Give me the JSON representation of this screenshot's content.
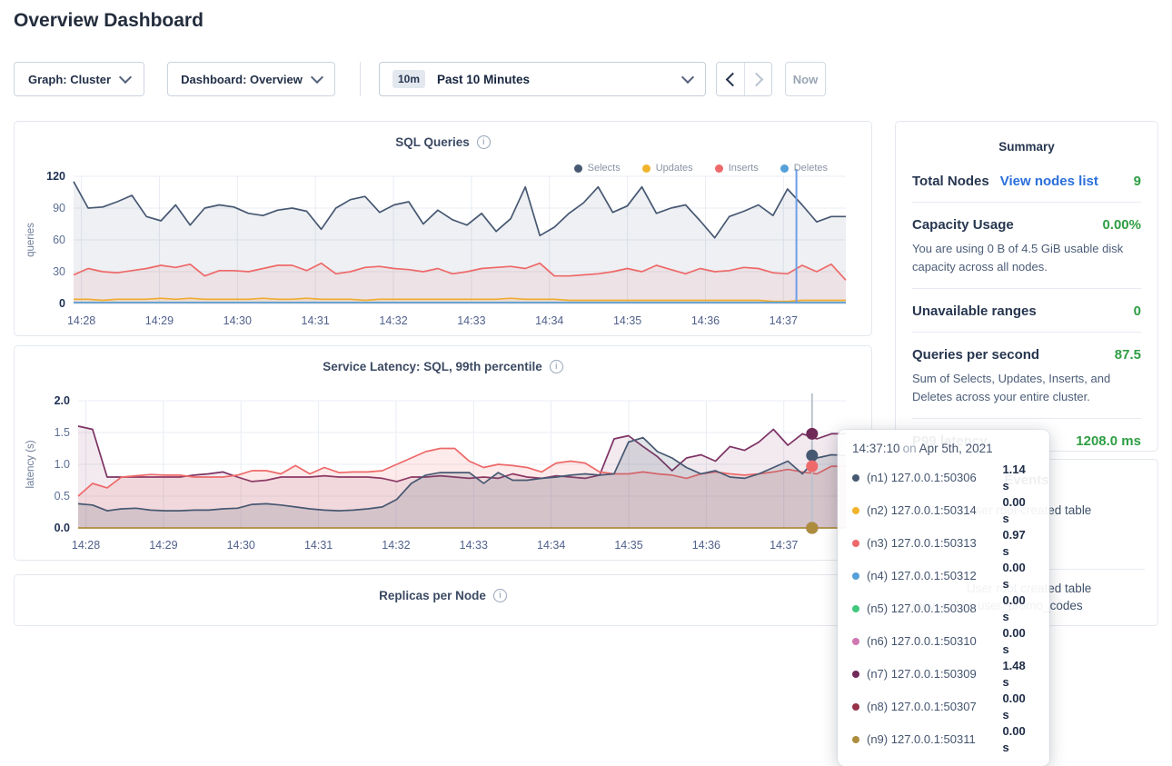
{
  "page": {
    "title": "Overview Dashboard"
  },
  "toolbar": {
    "graph_selector": "Graph: Cluster",
    "dashboard_selector": "Dashboard: Overview",
    "range_badge": "10m",
    "range_label": "Past 10 Minutes",
    "now_button": "Now"
  },
  "colors": {
    "link_blue": "#2a6fdb",
    "value_green": "#2f9e44",
    "hover_line_sql": "#6d9ee8",
    "hover_line_latency": "#bcc2cd"
  },
  "summary": {
    "title": "Summary",
    "rows": [
      {
        "label": "Total Nodes",
        "link": "View nodes list",
        "value": "9"
      },
      {
        "label": "Capacity Usage",
        "value": "0.00%",
        "subtext": "You are using 0 B of 4.5 GiB usable disk capacity across all nodes."
      },
      {
        "label": "Unavailable ranges",
        "value": "0"
      },
      {
        "label": "Queries per second",
        "value": "87.5",
        "subtext": "Sum of Selects, Updates, Inserts, and Deletes across your entire cluster."
      },
      {
        "label": "P99 latency",
        "value": "1208.0 ms"
      }
    ]
  },
  "events": {
    "title": "Events",
    "items": [
      {
        "text": "User root created table",
        "detail": ""
      },
      {
        "text": "User root created table",
        "detail": "movr.public.user_promo_codes"
      }
    ]
  },
  "tooltip": {
    "time": "14:37:10",
    "time_connector": "on",
    "date": "Apr 5th, 2021",
    "rows": [
      {
        "label": "(n1) 127.0.0.1:50306",
        "value": "1.14 s",
        "color": "#475872"
      },
      {
        "label": "(n2) 127.0.0.1:50314",
        "value": "0.00 s",
        "color": "#f0b42c"
      },
      {
        "label": "(n3) 127.0.0.1:50313",
        "value": "0.97 s",
        "color": "#ee6969"
      },
      {
        "label": "(n4) 127.0.0.1:50312",
        "value": "0.00 s",
        "color": "#55a0d8"
      },
      {
        "label": "(n5) 127.0.0.1:50308",
        "value": "0.00 s",
        "color": "#41c87c"
      },
      {
        "label": "(n6) 127.0.0.1:50310",
        "value": "0.00 s",
        "color": "#cf77b3"
      },
      {
        "label": "(n7) 127.0.0.1:50309",
        "value": "1.48 s",
        "color": "#702a58"
      },
      {
        "label": "(n8) 127.0.0.1:50307",
        "value": "0.00 s",
        "color": "#963148"
      },
      {
        "label": "(n9) 127.0.0.1:50311",
        "value": "0.00 s",
        "color": "#ad8d3d"
      }
    ]
  },
  "chart_data": [
    {
      "type": "area",
      "title": "SQL Queries",
      "ylabel": "queries",
      "ylim": [
        0,
        120
      ],
      "y_ticks": [
        "0",
        "30",
        "60",
        "90",
        "120"
      ],
      "x_ticks": [
        "14:28",
        "14:29",
        "14:30",
        "14:31",
        "14:32",
        "14:33",
        "14:34",
        "14:35",
        "14:36",
        "14:37"
      ],
      "legend_position": "top-right",
      "series": [
        {
          "name": "Selects",
          "color": "#475872",
          "fill": "rgba(90,106,134,0.10)",
          "values": [
            115,
            90,
            91,
            96,
            102,
            82,
            78,
            93,
            74,
            90,
            93,
            91,
            85,
            83,
            88,
            90,
            87,
            70,
            90,
            98,
            101,
            86,
            93,
            96,
            75,
            88,
            79,
            74,
            85,
            68,
            80,
            110,
            64,
            72,
            85,
            95,
            110,
            86,
            92,
            110,
            85,
            90,
            93,
            78,
            62,
            82,
            87,
            93,
            83,
            108,
            93,
            77,
            82,
            82
          ]
        },
        {
          "name": "Updates",
          "color": "#f0b42c",
          "fill": "rgba(240,180,44,0.12)",
          "values": [
            4,
            4,
            3,
            4,
            4,
            4,
            5,
            4,
            5,
            4,
            4,
            4,
            4,
            5,
            4,
            4,
            5,
            4,
            4,
            4,
            3,
            4,
            4,
            4,
            4,
            4,
            4,
            4,
            4,
            4,
            5,
            4,
            4,
            4,
            3,
            3,
            3,
            3,
            3,
            3,
            3,
            3,
            3,
            3,
            3,
            3,
            3,
            3,
            2,
            2,
            3,
            3,
            3,
            3
          ]
        },
        {
          "name": "Inserts",
          "color": "#ee6969",
          "fill": "rgba(238,105,105,0.10)",
          "values": [
            27,
            33,
            30,
            29,
            31,
            33,
            36,
            34,
            37,
            26,
            31,
            31,
            30,
            33,
            36,
            36,
            31,
            38,
            28,
            30,
            34,
            35,
            33,
            32,
            30,
            33,
            28,
            30,
            33,
            34,
            35,
            33,
            38,
            26,
            26,
            27,
            28,
            30,
            33,
            30,
            36,
            32,
            28,
            33,
            30,
            31,
            34,
            33,
            29,
            28,
            36,
            30,
            37,
            22
          ]
        },
        {
          "name": "Deletes",
          "color": "#55a0d8",
          "fill": "none",
          "values": [
            1,
            1,
            1,
            1,
            1,
            1,
            1,
            1,
            1,
            1,
            1,
            1,
            1,
            1,
            1,
            1,
            1,
            1,
            1,
            1,
            1,
            1,
            1,
            1,
            1,
            1,
            1,
            1,
            1,
            1,
            1,
            1,
            1,
            1,
            1,
            1,
            1,
            1,
            1,
            1,
            1,
            1,
            1,
            1,
            1,
            1,
            1,
            1,
            1,
            1,
            1,
            1,
            1,
            1
          ]
        }
      ]
    },
    {
      "type": "area",
      "title": "Service Latency: SQL, 99th percentile",
      "ylabel": "latency (s)",
      "ylim": [
        0,
        2
      ],
      "y_ticks": [
        "0.0",
        "0.5",
        "1.0",
        "1.5",
        "2.0"
      ],
      "x_ticks": [
        "14:28",
        "14:29",
        "14:30",
        "14:31",
        "14:32",
        "14:33",
        "14:34",
        "14:35",
        "14:36",
        "14:37"
      ],
      "series": [
        {
          "name": "(n7) 127.0.0.1:50309",
          "color": "#7d3264",
          "fill": "rgba(125,50,100,0.10)",
          "values": [
            1.6,
            1.55,
            0.8,
            0.8,
            0.8,
            0.8,
            0.8,
            0.8,
            0.83,
            0.85,
            0.88,
            0.8,
            0.73,
            0.75,
            0.8,
            0.8,
            0.8,
            0.82,
            0.8,
            0.8,
            0.8,
            0.78,
            0.73,
            0.8,
            0.8,
            0.82,
            0.8,
            0.78,
            0.8,
            0.78,
            0.85,
            0.8,
            0.78,
            0.82,
            0.8,
            0.78,
            0.83,
            1.4,
            1.45,
            1.28,
            1.12,
            0.9,
            1.1,
            1.15,
            1.05,
            1.28,
            1.22,
            1.35,
            1.55,
            1.3,
            1.48,
            1.4,
            1.48,
            1.48
          ]
        },
        {
          "name": "(n3) 127.0.0.1:50313",
          "color": "#ee6969",
          "fill": "rgba(238,105,105,0.14)",
          "values": [
            0.5,
            0.7,
            0.63,
            0.8,
            0.82,
            0.84,
            0.83,
            0.83,
            0.8,
            0.8,
            0.8,
            0.83,
            0.9,
            0.9,
            0.85,
            0.98,
            0.85,
            0.95,
            0.87,
            0.88,
            0.88,
            0.9,
            1.0,
            1.1,
            1.2,
            1.25,
            1.25,
            1.05,
            0.95,
            1.0,
            0.98,
            0.95,
            0.88,
            1.02,
            1.05,
            1.02,
            0.88,
            0.85,
            0.85,
            0.88,
            0.85,
            0.83,
            0.78,
            0.85,
            0.88,
            0.85,
            0.83,
            0.85,
            0.88,
            0.92,
            0.88,
            0.85,
            0.97,
            0.97
          ]
        },
        {
          "name": "(n1) 127.0.0.1:50306",
          "color": "#475872",
          "fill": "rgba(71,88,114,0.16)",
          "values": [
            0.38,
            0.36,
            0.27,
            0.3,
            0.31,
            0.28,
            0.27,
            0.27,
            0.28,
            0.28,
            0.3,
            0.31,
            0.37,
            0.38,
            0.36,
            0.33,
            0.3,
            0.28,
            0.27,
            0.28,
            0.3,
            0.33,
            0.45,
            0.7,
            0.83,
            0.87,
            0.87,
            0.87,
            0.7,
            0.87,
            0.75,
            0.75,
            0.78,
            0.8,
            0.83,
            0.85,
            0.83,
            0.85,
            1.35,
            1.42,
            1.2,
            1.1,
            0.95,
            0.85,
            0.9,
            0.8,
            0.78,
            0.85,
            0.95,
            1.05,
            0.85,
            1.1,
            1.15,
            1.14
          ]
        },
        {
          "name": "(n9) 127.0.0.1:50311",
          "color": "#ad8d3d",
          "fill": "none",
          "values": [
            0,
            0,
            0,
            0,
            0,
            0,
            0,
            0,
            0,
            0,
            0,
            0,
            0,
            0,
            0,
            0,
            0,
            0,
            0,
            0,
            0,
            0,
            0,
            0,
            0,
            0,
            0,
            0,
            0,
            0,
            0,
            0,
            0,
            0,
            0,
            0,
            0,
            0,
            0,
            0,
            0,
            0,
            0,
            0,
            0,
            0,
            0,
            0,
            0,
            0,
            0,
            0,
            0,
            0
          ]
        }
      ]
    },
    {
      "type": "area",
      "title": "Replicas per Node"
    }
  ]
}
